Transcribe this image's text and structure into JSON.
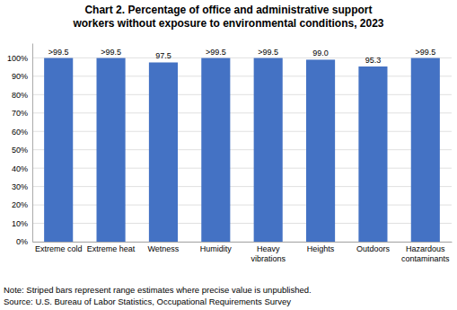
{
  "chart_data": {
    "type": "bar",
    "title": "Chart 2. Percentage of office and administrative support\nworkers without exposure to environmental conditions, 2023",
    "categories": [
      "Extreme cold",
      "Extreme heat",
      "Wetness",
      "Humidity",
      "Heavy\nvibrations",
      "Heights",
      "Outdoors",
      "Hazardous\ncontaminants"
    ],
    "values": [
      99.9,
      99.9,
      97.5,
      99.9,
      99.9,
      99.0,
      95.3,
      99.9
    ],
    "value_labels": [
      ">99.5",
      ">99.5",
      "97.5",
      ">99.5",
      ">99.5",
      "99.0",
      "95.3",
      ">99.5"
    ],
    "data_labels": true,
    "color": "#4472C4",
    "ylim": [
      0,
      108
    ],
    "yticks": [
      {
        "value": 0,
        "label": "0%"
      },
      {
        "value": 10,
        "label": "10%"
      },
      {
        "value": 20,
        "label": "20%"
      },
      {
        "value": 30,
        "label": "30%"
      },
      {
        "value": 40,
        "label": "40%"
      },
      {
        "value": 50,
        "label": "50%"
      },
      {
        "value": 60,
        "label": "60%"
      },
      {
        "value": 70,
        "label": "70%"
      },
      {
        "value": 80,
        "label": "80%"
      },
      {
        "value": 90,
        "label": "90%"
      },
      {
        "value": 100,
        "label": "100%"
      }
    ],
    "grid": true,
    "annotations": [
      "Note: Striped bars represent range estimates where precise value is unpublished.",
      "Source: U.S. Bureau of Labor Statistics, Occupational Requirements Survey"
    ]
  }
}
